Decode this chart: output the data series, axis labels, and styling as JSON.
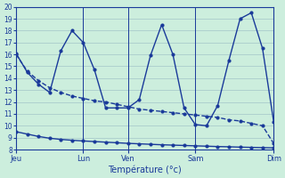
{
  "background_color": "#cceedd",
  "line_color": "#1a3a9a",
  "grid_color": "#aacccc",
  "xlabel": "Température (°c)",
  "ylim": [
    8,
    20
  ],
  "yticks": [
    8,
    9,
    10,
    11,
    12,
    13,
    14,
    15,
    16,
    17,
    18,
    19,
    20
  ],
  "xtick_labels": [
    "Jeu",
    "Lun",
    "Ven",
    "Sam",
    "Dim"
  ],
  "xtick_positions": [
    0,
    6,
    10,
    16,
    23
  ],
  "vline_positions": [
    6,
    10,
    16,
    23
  ],
  "line2_x": [
    0,
    1,
    2,
    3,
    4,
    5,
    6,
    7,
    8,
    9,
    10,
    11,
    12,
    13,
    14,
    15,
    16,
    17,
    18,
    19,
    20,
    21,
    22,
    23
  ],
  "line2_y": [
    16.1,
    14.5,
    13.5,
    12.8,
    16.3,
    18.0,
    17.0,
    14.7,
    11.5,
    11.5,
    11.5,
    12.2,
    15.9,
    18.5,
    16.0,
    11.5,
    10.1,
    10.0,
    11.7,
    15.5,
    19.0,
    19.5,
    16.5,
    10.3
  ],
  "line1_x": [
    0,
    1,
    2,
    3,
    4,
    5,
    6,
    7,
    8,
    9,
    10,
    11,
    12,
    13,
    14,
    15,
    16,
    17,
    18,
    19,
    20,
    21,
    22,
    23
  ],
  "line1_y": [
    16.0,
    14.6,
    13.8,
    13.2,
    12.8,
    12.5,
    12.3,
    12.1,
    12.0,
    11.8,
    11.6,
    11.4,
    11.3,
    11.2,
    11.1,
    11.0,
    10.9,
    10.8,
    10.7,
    10.5,
    10.4,
    10.2,
    10.0,
    8.5
  ],
  "line3_x": [
    0,
    1,
    2,
    3,
    4,
    5,
    6,
    7,
    8,
    9,
    10,
    11,
    12,
    13,
    14,
    15,
    16,
    17,
    18,
    19,
    20,
    21,
    22,
    23
  ],
  "line3_y": [
    9.5,
    9.3,
    9.1,
    8.95,
    8.85,
    8.78,
    8.72,
    8.67,
    8.62,
    8.57,
    8.52,
    8.48,
    8.44,
    8.4,
    8.37,
    8.34,
    8.31,
    8.28,
    8.25,
    8.23,
    8.2,
    8.18,
    8.16,
    8.14
  ],
  "marker": ".",
  "markersize": 4,
  "linewidth": 1.0
}
